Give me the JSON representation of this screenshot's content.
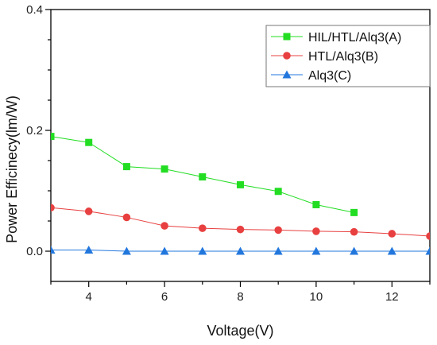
{
  "chart_data": {
    "type": "line",
    "xlabel": "Voltage(V)",
    "ylabel": "Power Efficinecy(lm/W)",
    "xlim": [
      3,
      13
    ],
    "ylim": [
      -0.05,
      0.4
    ],
    "xticks": [
      4,
      6,
      8,
      10,
      12
    ],
    "yticks": [
      0.0,
      0.2,
      0.4
    ],
    "ytick_labels": [
      "0.0",
      "0.2",
      "0.4"
    ],
    "grid": false,
    "legend_position": "top-right",
    "series": [
      {
        "name": "HIL/HTL/Alq3(A)",
        "color": "#22dd22",
        "marker": "square",
        "x": [
          3,
          4,
          5,
          6,
          7,
          8,
          9,
          10,
          11
        ],
        "y": [
          0.19,
          0.18,
          0.14,
          0.136,
          0.123,
          0.11,
          0.099,
          0.077,
          0.064
        ]
      },
      {
        "name": "HTL/Alq3(B)",
        "color": "#e84040",
        "marker": "circle",
        "x": [
          3,
          4,
          5,
          6,
          7,
          8,
          9,
          10,
          11,
          12,
          13
        ],
        "y": [
          0.072,
          0.066,
          0.056,
          0.042,
          0.038,
          0.036,
          0.035,
          0.033,
          0.032,
          0.029,
          0.025
        ]
      },
      {
        "name": "Alq3(C)",
        "color": "#2277dd",
        "marker": "triangle",
        "x": [
          3,
          4,
          5,
          6,
          7,
          8,
          9,
          10,
          11,
          12,
          13
        ],
        "y": [
          0.002,
          0.002,
          0.0,
          0.0,
          0.0,
          0.0,
          0.0,
          0.0,
          0.0,
          0.0,
          0.0
        ]
      }
    ]
  }
}
